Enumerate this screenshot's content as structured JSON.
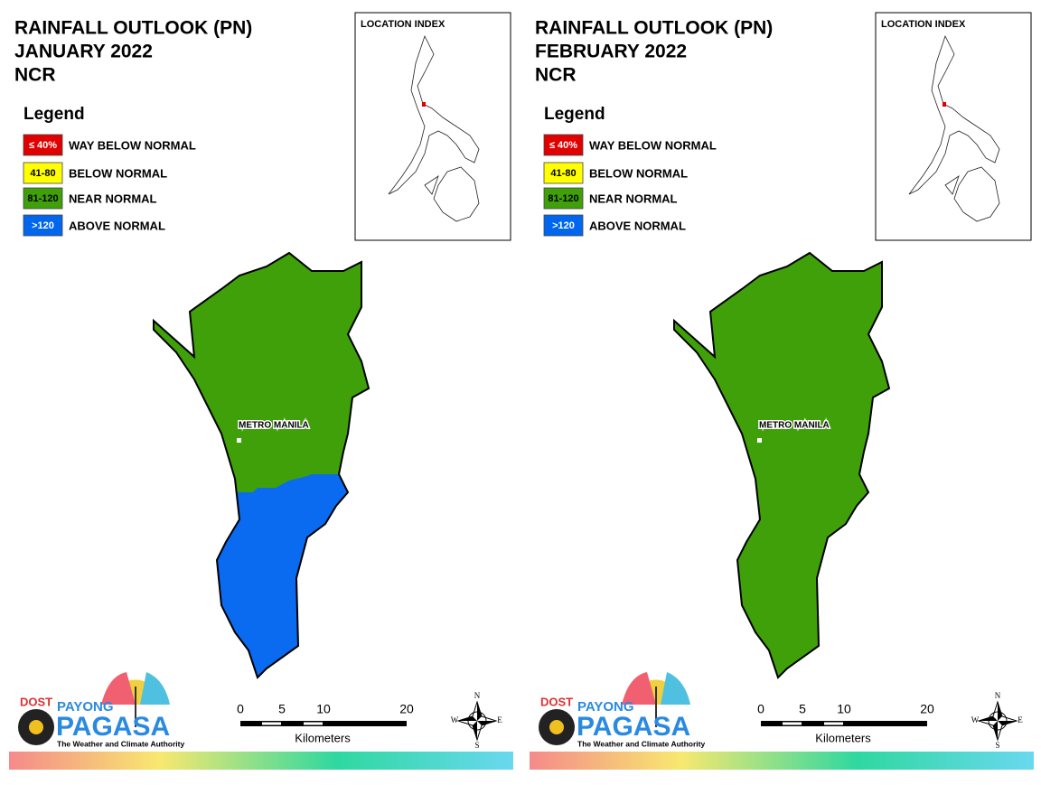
{
  "panels": [
    {
      "title": [
        "RAINFALL OUTLOOK (PN)",
        "JANUARY 2022",
        "NCR"
      ],
      "legend": {
        "title": "Legend",
        "items": [
          {
            "label": "≤ 40%",
            "text": "WAY BELOW NORMAL",
            "color": "#e00000",
            "label_color": "#ffffff"
          },
          {
            "label": "41-80",
            "text": "BELOW NORMAL",
            "color": "#ffff00",
            "label_color": "#000000"
          },
          {
            "label": "81-120",
            "text": "NEAR NORMAL",
            "color": "#3fa00a",
            "label_color": "#000000"
          },
          {
            "label": ">120",
            "text": "ABOVE NORMAL",
            "color": "#0066ee",
            "label_color": "#ffffff"
          }
        ]
      },
      "location_index": "LOCATION INDEX",
      "place_label": "METRO MANILA",
      "north_color": "#3fa00a",
      "south_color": "#0a6af0",
      "scale": {
        "ticks": [
          0,
          5,
          10,
          20
        ],
        "unit": "Kilometers"
      },
      "compass": {
        "n": "N",
        "e": "E",
        "s": "S",
        "w": "W"
      },
      "logo": {
        "dost": "DOST",
        "payong": "PAYONG",
        "pagasa": "PAGASA",
        "tagline": "The Weather and Climate Authority"
      }
    },
    {
      "title": [
        "RAINFALL OUTLOOK (PN)",
        "FEBRUARY 2022",
        "NCR"
      ],
      "legend": {
        "title": "Legend",
        "items": [
          {
            "label": "≤ 40%",
            "text": "WAY BELOW NORMAL",
            "color": "#e00000",
            "label_color": "#ffffff"
          },
          {
            "label": "41-80",
            "text": "BELOW NORMAL",
            "color": "#ffff00",
            "label_color": "#000000"
          },
          {
            "label": "81-120",
            "text": "NEAR NORMAL",
            "color": "#3fa00a",
            "label_color": "#000000"
          },
          {
            "label": ">120",
            "text": "ABOVE NORMAL",
            "color": "#0066ee",
            "label_color": "#ffffff"
          }
        ]
      },
      "location_index": "LOCATION INDEX",
      "place_label": "METRO MANILA",
      "north_color": "#3fa00a",
      "south_color": "#3fa00a",
      "scale": {
        "ticks": [
          0,
          5,
          10,
          20
        ],
        "unit": "Kilometers"
      },
      "compass": {
        "n": "N",
        "e": "E",
        "s": "S",
        "w": "W"
      },
      "logo": {
        "dost": "DOST",
        "payong": "PAYONG",
        "pagasa": "PAGASA",
        "tagline": "The Weather and Climate Authority"
      }
    }
  ]
}
